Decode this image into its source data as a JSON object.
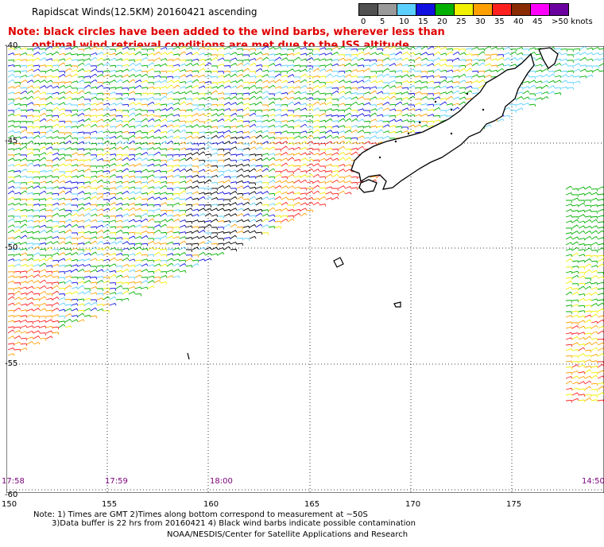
{
  "title": "Rapidscat Winds(12.5KM) 20160421 ascending",
  "note": {
    "line1": "Note: black circles have been added to the wind barbs, wherever less than",
    "line2": "optimal wind retrieval conditions are met due to the ISS altitude changes."
  },
  "colorbar": {
    "labels": [
      "0",
      "5",
      "10",
      "15",
      "20",
      "25",
      "30",
      "35",
      "40",
      "45",
      ">50 knots"
    ],
    "colors": [
      "#505050",
      "#9a9a9a",
      "#5bd0ff",
      "#1010e0",
      "#00b000",
      "#f0f000",
      "#ffa000",
      "#ff2020",
      "#8a2a00",
      "#ff00ff",
      "#6a00a0"
    ]
  },
  "lat_labels": [
    "-40",
    "-45",
    "-50",
    "-55",
    "-60"
  ],
  "lon_labels": [
    "150",
    "155",
    "160",
    "165",
    "170",
    "175"
  ],
  "times": [
    "17:58",
    "17:59",
    "18:00",
    "14:50"
  ],
  "footer": {
    "line1": "Note: 1) Times are GMT 2)Times along bottom correspond to measurement at ~50S",
    "line2": "3)Data buffer is 22 hrs from 20160421 4) Black wind barbs indicate possible contamination",
    "line3": "NOAA/NESDIS/Center for Satellite Applications and Research"
  }
}
